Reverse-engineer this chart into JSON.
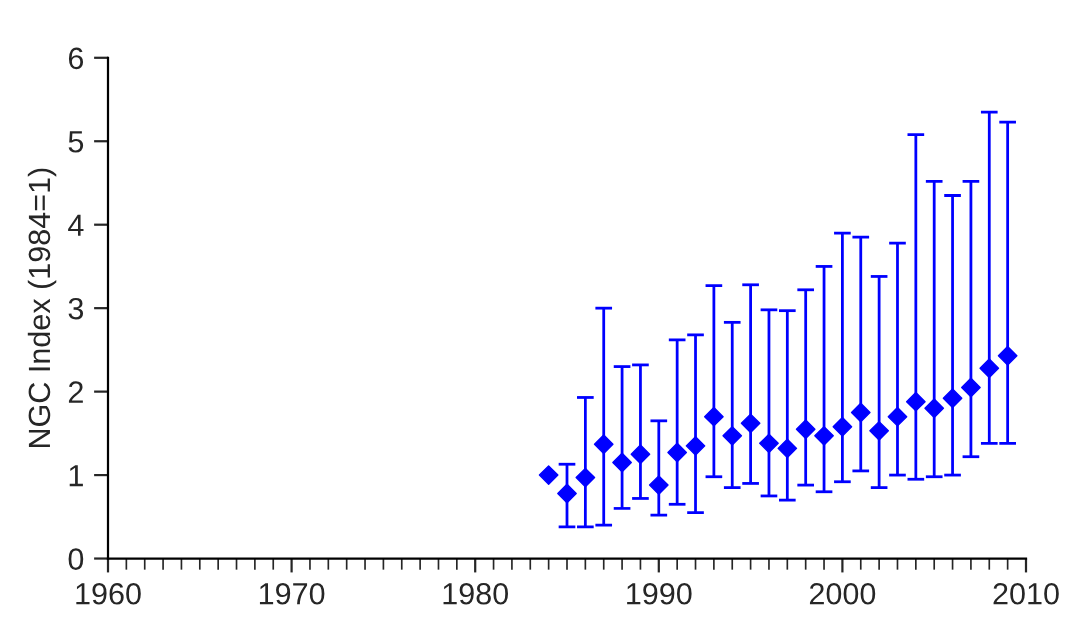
{
  "chart_data": {
    "type": "scatter",
    "ylabel": "NGC Index (1984=1)",
    "xlim": [
      1960,
      2010
    ],
    "xticks": [
      1960,
      1970,
      1980,
      1990,
      2000,
      2010
    ],
    "ylim": [
      0,
      6
    ],
    "yticks": [
      0,
      1,
      2,
      3,
      4,
      5,
      6
    ],
    "grid": false,
    "legend": false,
    "marker": "diamond",
    "x": [
      1984,
      1985,
      1986,
      1987,
      1988,
      1989,
      1990,
      1991,
      1992,
      1993,
      1994,
      1995,
      1996,
      1997,
      1998,
      1999,
      2000,
      2001,
      2002,
      2003,
      2004,
      2005,
      2006,
      2007,
      2008,
      2009
    ],
    "series": [
      {
        "color": "#0000ff",
        "values": [
          1.0,
          0.78,
          0.97,
          1.37,
          1.15,
          1.25,
          0.88,
          1.27,
          1.35,
          1.7,
          1.47,
          1.62,
          1.38,
          1.32,
          1.55,
          1.47,
          1.58,
          1.75,
          1.53,
          1.7,
          1.88,
          1.8,
          1.92,
          2.05,
          2.28,
          2.43
        ],
        "errors": [
          null,
          [
            0.38,
            1.13
          ],
          [
            0.38,
            1.93
          ],
          [
            0.4,
            3.0
          ],
          [
            0.6,
            2.3
          ],
          [
            0.72,
            2.32
          ],
          [
            0.52,
            1.65
          ],
          [
            0.65,
            2.62
          ],
          [
            0.55,
            2.68
          ],
          [
            0.98,
            3.27
          ],
          [
            0.85,
            2.83
          ],
          [
            0.9,
            3.28
          ],
          [
            0.75,
            2.98
          ],
          [
            0.7,
            2.97
          ],
          [
            0.88,
            3.22
          ],
          [
            0.8,
            3.5
          ],
          [
            0.92,
            3.9
          ],
          [
            1.05,
            3.85
          ],
          [
            0.85,
            3.38
          ],
          [
            1.0,
            3.78
          ],
          [
            0.95,
            5.08
          ],
          [
            0.98,
            4.52
          ],
          [
            1.0,
            4.35
          ],
          [
            1.22,
            4.52
          ],
          [
            1.38,
            5.35
          ],
          [
            1.38,
            5.23
          ]
        ]
      }
    ]
  }
}
